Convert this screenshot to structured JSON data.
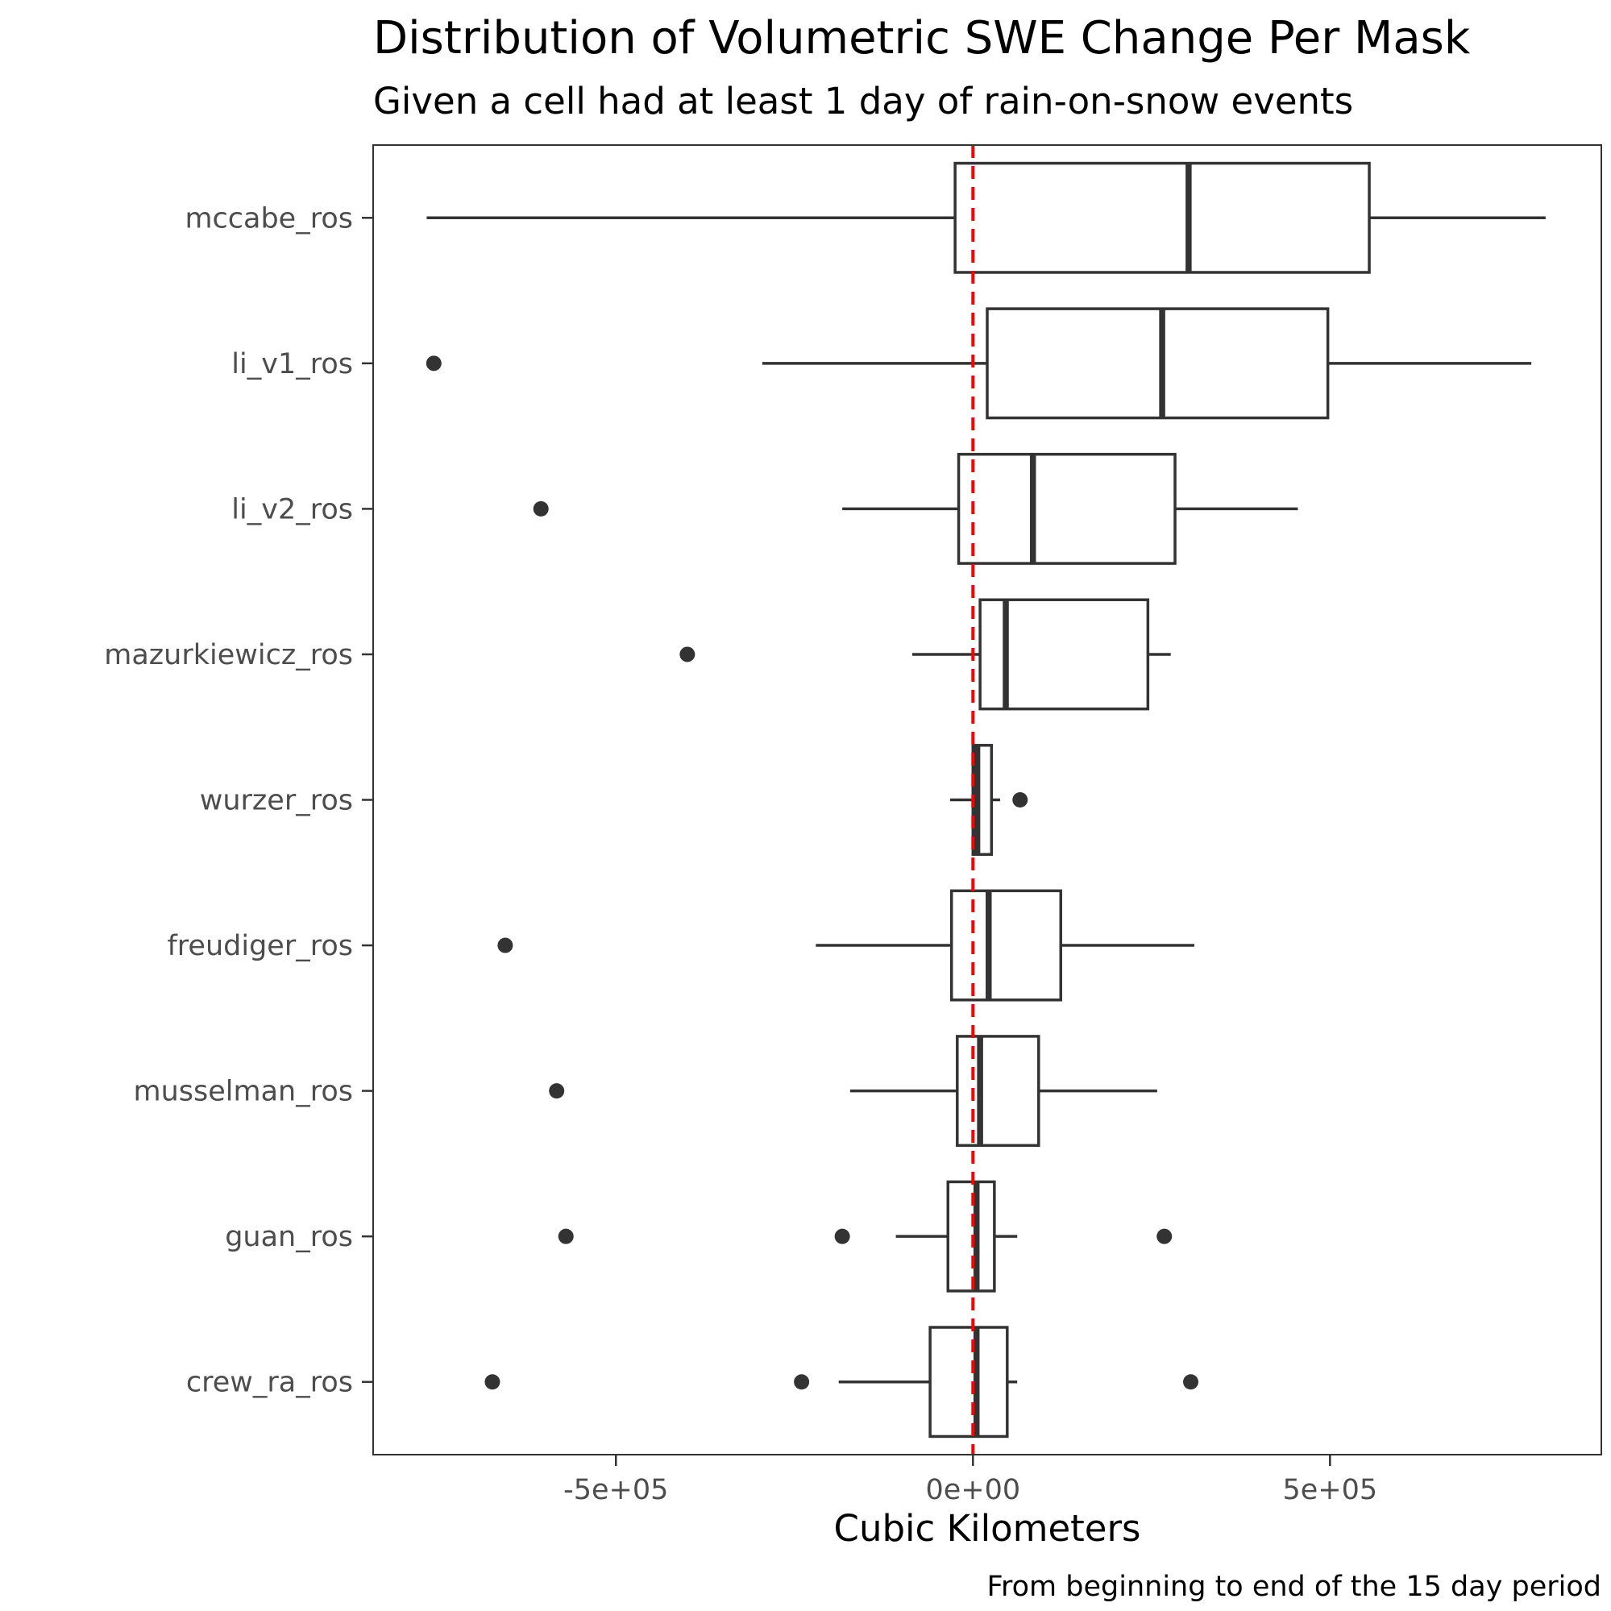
{
  "chart_data": {
    "type": "boxplot",
    "orientation": "horizontal",
    "title": "Distribution of Volumetric SWE Change Per Mask",
    "subtitle": "Given a cell had at least 1 day of rain-on-snow events",
    "xlabel": "Cubic Kilometers",
    "ylabel": "",
    "caption": "From beginning to end of the 15 day period",
    "xlim": [
      -840000,
      880000
    ],
    "x_ticks": [
      {
        "value": -500000,
        "label": "-5e+05"
      },
      {
        "value": 0,
        "label": "0e+00"
      },
      {
        "value": 500000,
        "label": "5e+05"
      }
    ],
    "reference_line": {
      "value": 0,
      "style": "dashed",
      "color": "#ff0000"
    },
    "grid": false,
    "legend": "none",
    "colors": {
      "box_stroke": "#333333",
      "outlier": "#333333",
      "panel_border": "#333333",
      "reference": "#ff0000"
    },
    "categories": [
      "mccabe_ros",
      "li_v1_ros",
      "li_v2_ros",
      "mazurkiewicz_ros",
      "wurzer_ros",
      "freudiger_ros",
      "musselman_ros",
      "guan_ros",
      "crew_ra_ros"
    ],
    "boxes": [
      {
        "label": "mccabe_ros",
        "min": -765000,
        "q1": -25000,
        "median": 302000,
        "q3": 555000,
        "max": 802000,
        "outliers": []
      },
      {
        "label": "li_v1_ros",
        "min": -295000,
        "q1": 20000,
        "median": 265000,
        "q3": 497000,
        "max": 782000,
        "outliers": [
          -755000
        ]
      },
      {
        "label": "li_v2_ros",
        "min": -183000,
        "q1": -20000,
        "median": 84000,
        "q3": 283000,
        "max": 455000,
        "outliers": [
          -605000
        ]
      },
      {
        "label": "mazurkiewicz_ros",
        "min": -85000,
        "q1": 10000,
        "median": 46000,
        "q3": 245000,
        "max": 277000,
        "outliers": [
          -400000
        ]
      },
      {
        "label": "wurzer_ros",
        "min": -32000,
        "q1": 0,
        "median": 6000,
        "q3": 26000,
        "max": 38000,
        "outliers": [
          66000
        ]
      },
      {
        "label": "freudiger_ros",
        "min": -220000,
        "q1": -30000,
        "median": 22000,
        "q3": 123000,
        "max": 310000,
        "outliers": [
          -655000
        ]
      },
      {
        "label": "musselman_ros",
        "min": -172000,
        "q1": -22000,
        "median": 10000,
        "q3": 92000,
        "max": 258000,
        "outliers": [
          -583000
        ]
      },
      {
        "label": "guan_ros",
        "min": -108000,
        "q1": -35000,
        "median": 5000,
        "q3": 30000,
        "max": 62000,
        "outliers": [
          -570000,
          -183000,
          268000
        ]
      },
      {
        "label": "crew_ra_ros",
        "min": -188000,
        "q1": -60000,
        "median": 5000,
        "q3": 48000,
        "max": 62000,
        "outliers": [
          -673000,
          -240000,
          305000
        ]
      }
    ]
  }
}
